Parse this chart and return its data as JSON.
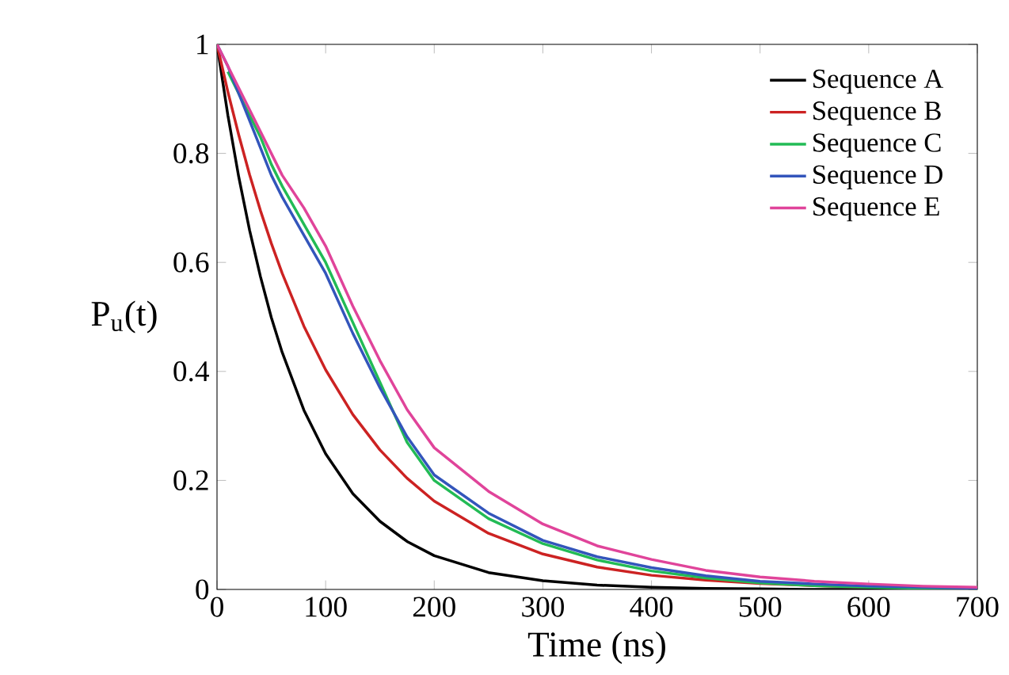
{
  "chart_data": {
    "type": "line",
    "xlabel": "Time (ns)",
    "ylabel": "P$_{u}$(t)",
    "x": [
      0,
      10,
      20,
      30,
      40,
      50,
      60,
      80,
      100,
      125,
      150,
      175,
      200,
      250,
      300,
      350,
      400,
      450,
      500,
      550,
      600,
      650,
      700
    ],
    "series": [
      {
        "name": "Sequence A",
        "color": "#000000",
        "values": [
          1,
          0.87,
          0.757,
          0.659,
          0.574,
          0.499,
          0.435,
          0.329,
          0.249,
          0.176,
          0.125,
          0.088,
          0.062,
          0.031,
          0.016,
          0.008,
          0.004,
          0.002,
          0.001,
          0,
          0,
          0,
          0
        ]
      },
      {
        "name": "Sequence B",
        "color": "#cc2222",
        "values": [
          1,
          0.913,
          0.834,
          0.761,
          0.695,
          0.635,
          0.58,
          0.483,
          0.403,
          0.321,
          0.256,
          0.204,
          0.162,
          0.103,
          0.065,
          0.041,
          0.026,
          0.017,
          0.011,
          0.007,
          0.004,
          null,
          null
        ]
      },
      {
        "name": "Sequence C",
        "color": "#22bb55",
        "values": [
          null,
          0.95,
          0.91,
          0.87,
          0.83,
          0.78,
          0.74,
          0.67,
          0.6,
          0.49,
          0.38,
          0.27,
          0.2,
          0.13,
          0.084,
          0.054,
          0.034,
          0.021,
          0.012,
          0.007,
          0.004,
          0.002,
          0.001
        ]
      },
      {
        "name": "Sequence D",
        "color": "#3355bb",
        "values": [
          1,
          0.96,
          0.91,
          0.86,
          0.81,
          0.76,
          0.72,
          0.65,
          0.58,
          0.47,
          0.37,
          0.28,
          0.21,
          0.14,
          0.09,
          0.06,
          0.04,
          0.025,
          0.015,
          0.01,
          0.006,
          0.004,
          0.002
        ]
      },
      {
        "name": "Sequence E",
        "color": "#e0449a",
        "values": [
          1,
          0.96,
          0.92,
          0.88,
          0.84,
          0.8,
          0.76,
          0.7,
          0.63,
          0.52,
          0.42,
          0.33,
          0.26,
          0.18,
          0.12,
          0.08,
          0.055,
          0.035,
          0.023,
          0.015,
          0.01,
          0.006,
          0.004
        ]
      }
    ],
    "xlim": [
      0,
      700
    ],
    "xticks": [
      0,
      100,
      200,
      300,
      400,
      500,
      600,
      700
    ],
    "ylim": [
      0,
      1
    ],
    "yticks": [
      0,
      0.2,
      0.4,
      0.6,
      0.8,
      1
    ],
    "legend": "top right",
    "marker": "none",
    "line_style": "solid",
    "grid": false
  }
}
